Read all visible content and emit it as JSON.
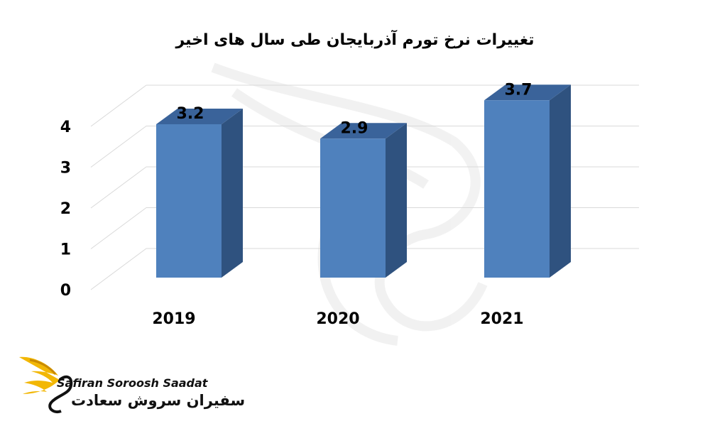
{
  "chart_data": {
    "type": "bar",
    "title": "تغییرات نرخ تورم آذربایجان طی سال های اخیر",
    "categories": [
      "2019",
      "2020",
      "2021"
    ],
    "values": [
      3.2,
      2.9,
      3.7
    ],
    "value_labels": [
      "3.2",
      "2.9",
      "3.7"
    ],
    "yticks": [
      "0",
      "1",
      "2",
      "3",
      "4"
    ],
    "ylim": [
      0,
      4
    ],
    "grid": true,
    "style": "3d-column",
    "colors": {
      "front": "#4f81bd",
      "side": "#2f527f",
      "top": "#3a639a"
    }
  },
  "branding": {
    "name_en": "Safiran Soroosh Saadat",
    "name_fa": "سفیران سروش سعادت",
    "logo_colors": {
      "wing": "#f2b705",
      "wing_dark": "#c98a00",
      "mark": "#111111"
    }
  }
}
